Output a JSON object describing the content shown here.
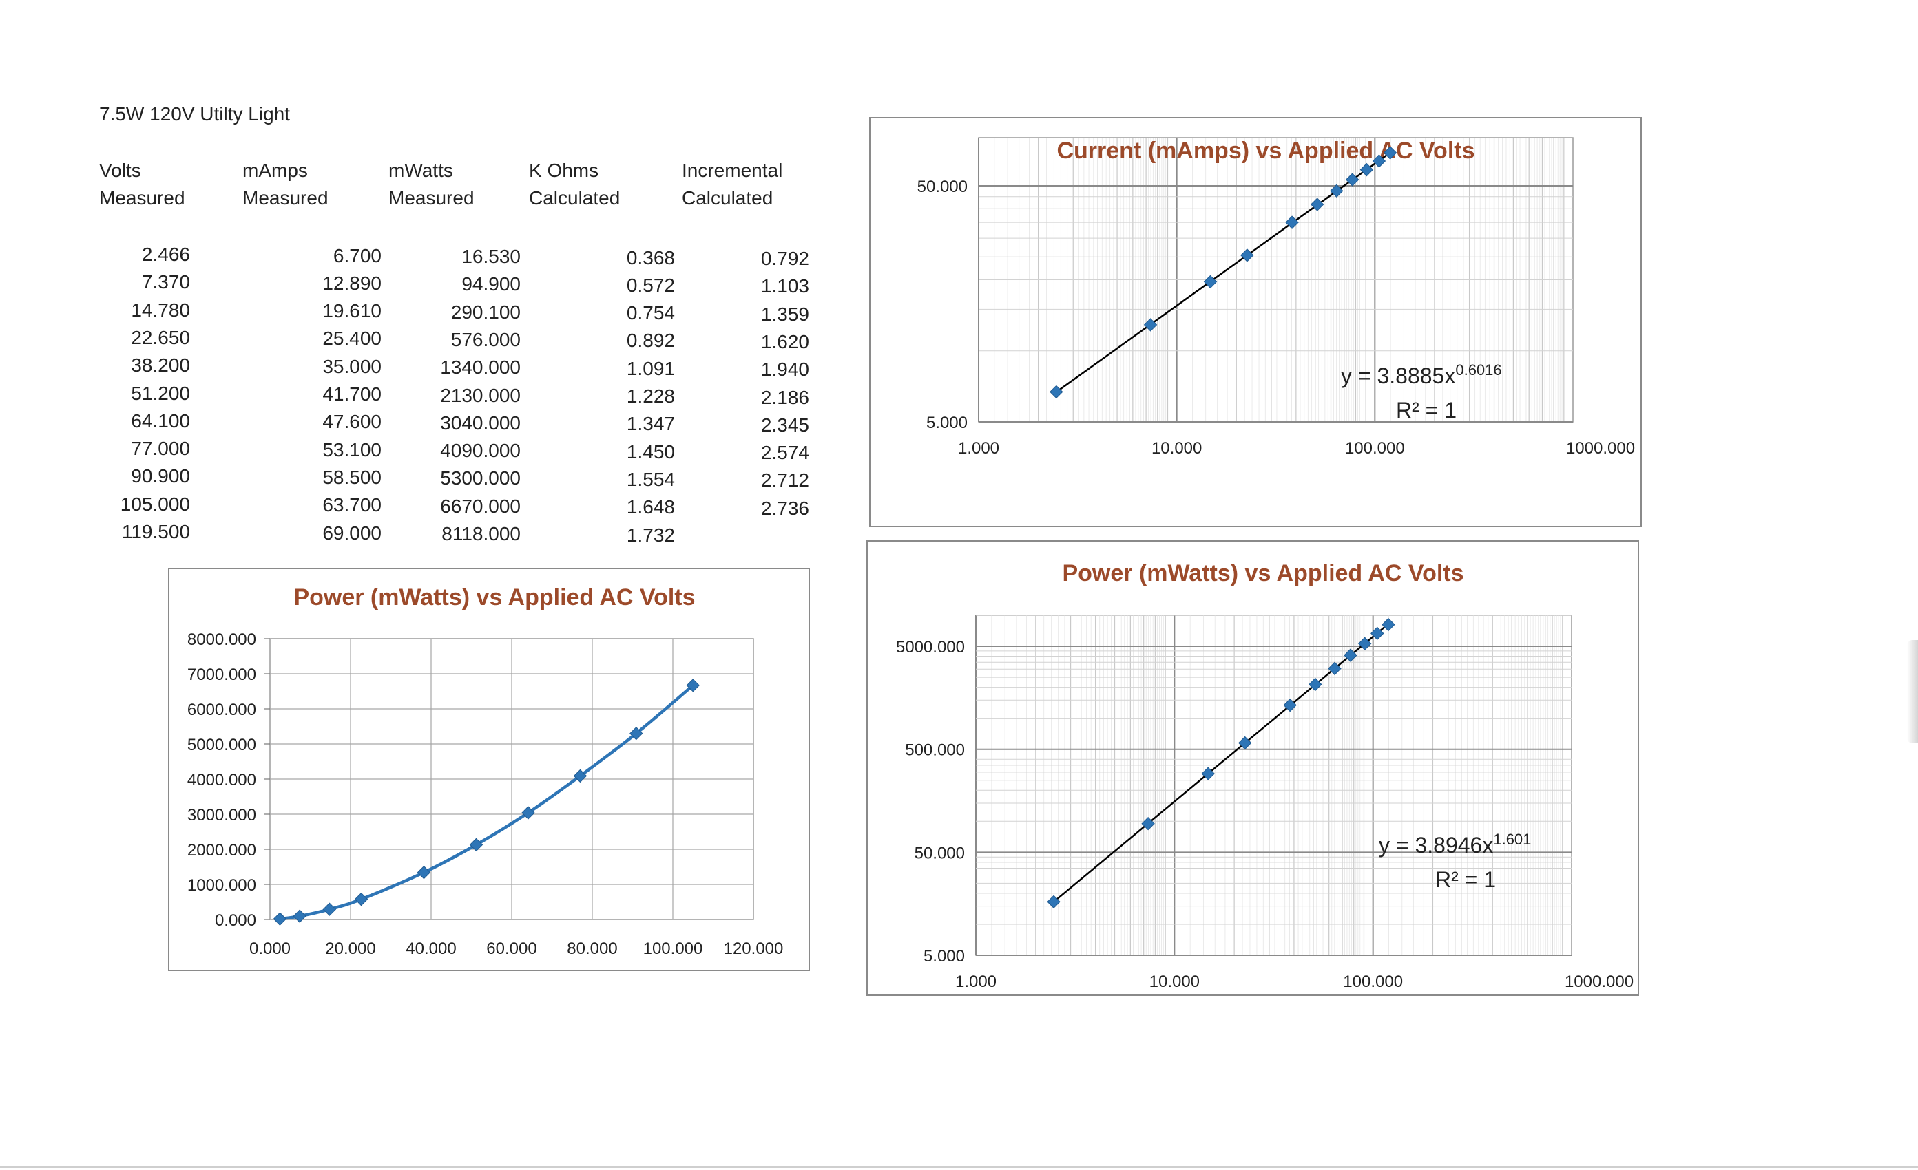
{
  "page": {
    "title": "7.5W 120V Utilty Light",
    "accent_color": "#9c4a2a",
    "series_color": "#2e75b6",
    "trend_color": "#000000"
  },
  "table": {
    "headers": [
      "Volts\nMeasured",
      "mAmps\nMeasured",
      "mWatts\nMeasured",
      "K Ohms\nCalculated",
      "Incremental\nCalculated"
    ],
    "rows": [
      [
        "2.466",
        "6.700",
        "16.530",
        "0.368",
        "0.792"
      ],
      [
        "7.370",
        "12.890",
        "94.900",
        "0.572",
        "1.103"
      ],
      [
        "14.780",
        "19.610",
        "290.100",
        "0.754",
        "1.359"
      ],
      [
        "22.650",
        "25.400",
        "576.000",
        "0.892",
        "1.620"
      ],
      [
        "38.200",
        "35.000",
        "1340.000",
        "1.091",
        "1.940"
      ],
      [
        "51.200",
        "41.700",
        "2130.000",
        "1.228",
        "2.186"
      ],
      [
        "64.100",
        "47.600",
        "3040.000",
        "1.347",
        "2.345"
      ],
      [
        "77.000",
        "53.100",
        "4090.000",
        "1.450",
        "2.574"
      ],
      [
        "90.900",
        "58.500",
        "5300.000",
        "1.554",
        "2.712"
      ],
      [
        "105.000",
        "63.700",
        "6670.000",
        "1.648",
        "2.736"
      ],
      [
        "119.500",
        "69.000",
        "8118.000",
        "1.732",
        ""
      ]
    ]
  },
  "chart_data": [
    {
      "type": "line",
      "title": "Current (mAmps) vs Applied AC Volts",
      "x_scale": "log",
      "y_scale": "log",
      "xlim": [
        1,
        1000
      ],
      "ylim": [
        5,
        80
      ],
      "x_ticks": [
        "1.000",
        "10.000",
        "100.000",
        "1000.000"
      ],
      "y_ticks": [
        "5.000",
        "50.000"
      ],
      "grid": true,
      "series": [
        {
          "x": [
            2.466,
            7.37,
            14.78,
            22.65,
            38.2,
            51.2,
            64.1,
            77.0,
            90.9,
            105.0,
            119.5
          ],
          "y": [
            6.7,
            12.89,
            19.61,
            25.4,
            35.0,
            41.7,
            47.6,
            53.1,
            58.5,
            63.7,
            69.0
          ]
        }
      ],
      "trendline": {
        "type": "power",
        "a": 3.8885,
        "b": 0.6016,
        "label": "y = 3.8885x",
        "exponent": "0.6016",
        "r2_label": "R² = 1"
      }
    },
    {
      "type": "line",
      "title": "Power (mWatts) vs Applied AC Volts",
      "x_scale": "linear",
      "y_scale": "linear",
      "xlim": [
        0,
        120
      ],
      "ylim": [
        0,
        8000
      ],
      "x_ticks": [
        "0.000",
        "20.000",
        "40.000",
        "60.000",
        "80.000",
        "100.000",
        "120.000"
      ],
      "y_ticks": [
        "0.000",
        "1000.000",
        "2000.000",
        "3000.000",
        "4000.000",
        "5000.000",
        "6000.000",
        "7000.000",
        "8000.000"
      ],
      "grid": true,
      "series": [
        {
          "x": [
            2.466,
            7.37,
            14.78,
            22.65,
            38.2,
            51.2,
            64.1,
            77.0,
            90.9,
            105.0
          ],
          "y": [
            16.53,
            94.9,
            290.1,
            576.0,
            1340.0,
            2130.0,
            3040.0,
            4090.0,
            5300.0,
            6670.0
          ]
        }
      ]
    },
    {
      "type": "line",
      "title": "Power (mWatts) vs Applied AC Volts",
      "x_scale": "log",
      "y_scale": "log",
      "xlim": [
        1,
        1000
      ],
      "ylim": [
        5,
        10000
      ],
      "x_ticks": [
        "1.000",
        "10.000",
        "100.000",
        "1000.000"
      ],
      "y_ticks": [
        "5.000",
        "50.000",
        "500.000",
        "5000.000"
      ],
      "grid": true,
      "series": [
        {
          "x": [
            2.466,
            7.37,
            14.78,
            22.65,
            38.2,
            51.2,
            64.1,
            77.0,
            90.9,
            105.0,
            119.5
          ],
          "y": [
            16.53,
            94.9,
            290.1,
            576.0,
            1340.0,
            2130.0,
            3040.0,
            4090.0,
            5300.0,
            6670.0,
            8118.0
          ]
        }
      ],
      "trendline": {
        "type": "power",
        "a": 3.8946,
        "b": 1.601,
        "label": "y = 3.8946x",
        "exponent": "1.601",
        "r2_label": "R² = 1"
      }
    }
  ]
}
